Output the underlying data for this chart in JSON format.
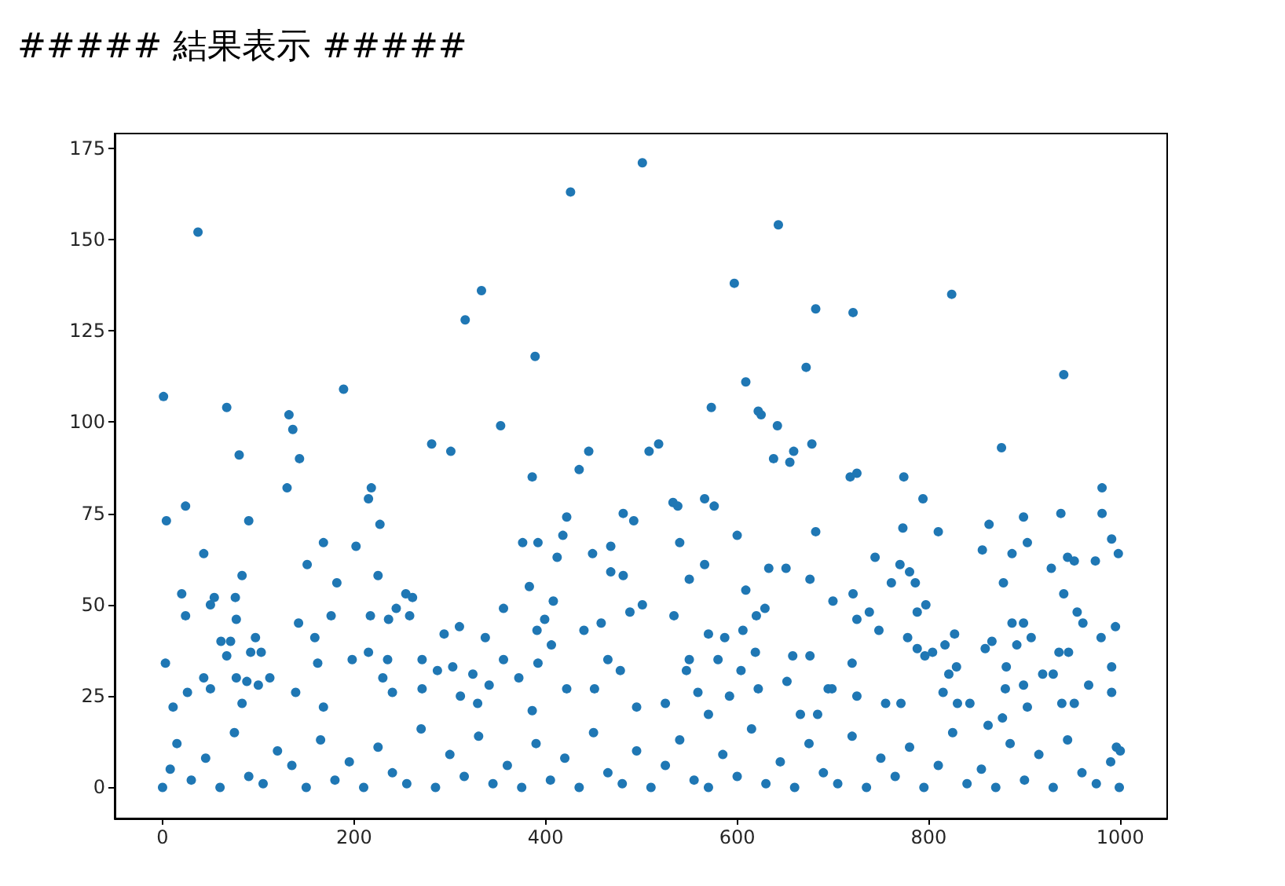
{
  "chart_data": {
    "type": "scatter",
    "title": "##### 結果表示 #####",
    "x": [
      37,
      316,
      1,
      67,
      132,
      136,
      189,
      80,
      143,
      281,
      301,
      130,
      218,
      501,
      426,
      643,
      333,
      597,
      682,
      389,
      672,
      609,
      573,
      622,
      625,
      642,
      353,
      678,
      659,
      638,
      655,
      445,
      435,
      508,
      518,
      386,
      824,
      721,
      941,
      876,
      718,
      725,
      774,
      981,
      215,
      24,
      4,
      90,
      227,
      168,
      202,
      43,
      151,
      83,
      225,
      182,
      20,
      54,
      50,
      76,
      24,
      77,
      254,
      261,
      244,
      236,
      258,
      217,
      176,
      142,
      159,
      310,
      294,
      61,
      71,
      67,
      97,
      92,
      103,
      162,
      3,
      198,
      215,
      235,
      271,
      287,
      303,
      43,
      77,
      112,
      230,
      88,
      100,
      50,
      271,
      240,
      26,
      139,
      11,
      83,
      168,
      311,
      376,
      392,
      422,
      418,
      412,
      481,
      492,
      449,
      468,
      468,
      481,
      533,
      538,
      566,
      576,
      540,
      600,
      682,
      566,
      550,
      633,
      651,
      676,
      383,
      408,
      356,
      337,
      391,
      399,
      440,
      458,
      488,
      501,
      534,
      609,
      629,
      620,
      606,
      570,
      587,
      406,
      356,
      392,
      465,
      478,
      550,
      547,
      580,
      604,
      619,
      658,
      676,
      652,
      324,
      372,
      341,
      695,
      422,
      451,
      559,
      525,
      592,
      622,
      329,
      386,
      495,
      570,
      684,
      666,
      794,
      938,
      981,
      899,
      863,
      773,
      810,
      991,
      998,
      856,
      887,
      903,
      744,
      928,
      945,
      952,
      974,
      770,
      780,
      786,
      761,
      878,
      700,
      721,
      941,
      725,
      738,
      748,
      788,
      797,
      955,
      961,
      995,
      778,
      788,
      796,
      804,
      817,
      827,
      859,
      866,
      887,
      899,
      892,
      907,
      936,
      946,
      980,
      720,
      829,
      821,
      815,
      881,
      880,
      899,
      919,
      930,
      991,
      967,
      991,
      699,
      725,
      771,
      755,
      830,
      843,
      939,
      952,
      903,
      996,
      1000,
      877,
      862,
      0,
      8,
      15,
      30,
      45,
      60,
      75,
      90,
      105,
      120,
      135,
      150,
      165,
      180,
      195,
      210,
      225,
      240,
      255,
      270,
      285,
      300,
      315,
      330,
      345,
      360,
      375,
      390,
      405,
      420,
      435,
      450,
      465,
      480,
      495,
      510,
      525,
      540,
      555,
      570,
      585,
      600,
      615,
      630,
      645,
      660,
      675,
      690,
      705,
      720,
      735,
      750,
      765,
      780,
      795,
      810,
      825,
      840,
      855,
      870,
      885,
      900,
      915,
      930,
      945,
      960,
      975,
      990,
      999
    ],
    "values": [
      152,
      128,
      107,
      104,
      102,
      98,
      109,
      91,
      90,
      94,
      92,
      82,
      82,
      171,
      163,
      154,
      136,
      138,
      131,
      118,
      115,
      111,
      104,
      103,
      102,
      99,
      99,
      94,
      92,
      90,
      89,
      92,
      87,
      92,
      94,
      85,
      135,
      130,
      113,
      93,
      85,
      86,
      85,
      82,
      79,
      77,
      73,
      73,
      72,
      67,
      66,
      64,
      61,
      58,
      58,
      56,
      53,
      52,
      50,
      52,
      47,
      46,
      53,
      52,
      49,
      46,
      47,
      47,
      47,
      45,
      41,
      44,
      42,
      40,
      40,
      36,
      41,
      37,
      37,
      34,
      34,
      35,
      37,
      35,
      35,
      32,
      33,
      30,
      30,
      30,
      30,
      29,
      28,
      27,
      27,
      26,
      26,
      26,
      22,
      23,
      22,
      25,
      67,
      67,
      74,
      69,
      63,
      75,
      73,
      64,
      66,
      59,
      58,
      78,
      77,
      79,
      77,
      67,
      69,
      70,
      61,
      57,
      60,
      60,
      57,
      55,
      51,
      49,
      41,
      43,
      46,
      43,
      45,
      48,
      50,
      47,
      54,
      49,
      47,
      43,
      42,
      41,
      39,
      35,
      34,
      35,
      32,
      35,
      32,
      35,
      32,
      37,
      36,
      36,
      29,
      31,
      30,
      28,
      27,
      27,
      27,
      26,
      23,
      25,
      27,
      23,
      21,
      22,
      20,
      20,
      20,
      79,
      75,
      75,
      74,
      72,
      71,
      70,
      68,
      64,
      65,
      64,
      67,
      63,
      60,
      63,
      62,
      62,
      61,
      59,
      56,
      56,
      56,
      51,
      53,
      53,
      46,
      48,
      43,
      48,
      50,
      48,
      45,
      44,
      41,
      38,
      36,
      37,
      39,
      42,
      38,
      40,
      45,
      45,
      39,
      41,
      37,
      37,
      41,
      34,
      33,
      31,
      26,
      33,
      27,
      28,
      31,
      31,
      33,
      28,
      26,
      27,
      25,
      23,
      23,
      23,
      23,
      23,
      23,
      22,
      11,
      10,
      19,
      17,
      0,
      5,
      12,
      2,
      8,
      0,
      15,
      3,
      1,
      10,
      6,
      0,
      13,
      2,
      7,
      0,
      11,
      4,
      1,
      16,
      0,
      9,
      3,
      14,
      1,
      6,
      0,
      12,
      2,
      8,
      0,
      15,
      4,
      1,
      10,
      0,
      6,
      13,
      2,
      0,
      9,
      3,
      16,
      1,
      7,
      0,
      12,
      4,
      1,
      14,
      0,
      8,
      3,
      11,
      0,
      6,
      15,
      1,
      5,
      0,
      12,
      2,
      9,
      0,
      13,
      4,
      1,
      7,
      0
    ],
    "color": "#1f77b4",
    "marker": "circle",
    "xlim": [
      -50,
      1049
    ],
    "xticks": [
      0,
      200,
      400,
      600,
      800,
      1000
    ],
    "ylim": [
      -8.5,
      179
    ],
    "yticks": [
      0,
      25,
      50,
      75,
      100,
      125,
      150,
      175
    ],
    "grid": false
  }
}
